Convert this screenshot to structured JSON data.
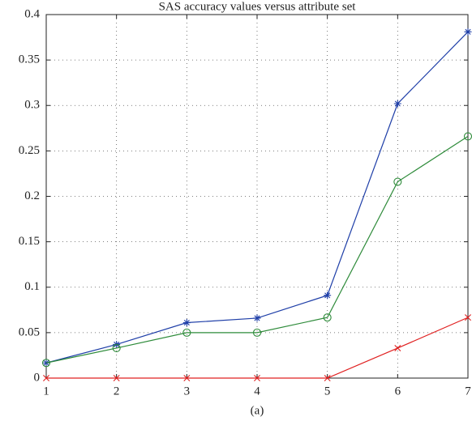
{
  "chart_data": {
    "type": "line",
    "title": "SAS accuracy values versus attribute set",
    "caption": "(a)",
    "x": [
      1,
      2,
      3,
      4,
      5,
      6,
      7
    ],
    "series": [
      {
        "color": "#1f3fa8",
        "marker": "star",
        "values": [
          0.0167,
          0.037,
          0.061,
          0.066,
          0.091,
          0.302,
          0.381
        ]
      },
      {
        "color": "#2e8b3a",
        "marker": "circle",
        "values": [
          0.0167,
          0.033,
          0.05,
          0.05,
          0.0667,
          0.216,
          0.266
        ]
      },
      {
        "color": "#e02020",
        "marker": "x",
        "values": [
          0,
          0,
          0,
          0,
          0,
          0.033,
          0.0667
        ]
      }
    ],
    "xlim": [
      1,
      7
    ],
    "xticks": [
      1,
      2,
      3,
      4,
      5,
      6,
      7
    ],
    "ylim": [
      0,
      0.4
    ],
    "yticks": [
      0,
      0.05,
      0.1,
      0.15,
      0.2,
      0.25,
      0.3,
      0.35,
      0.4
    ],
    "grid": true
  }
}
